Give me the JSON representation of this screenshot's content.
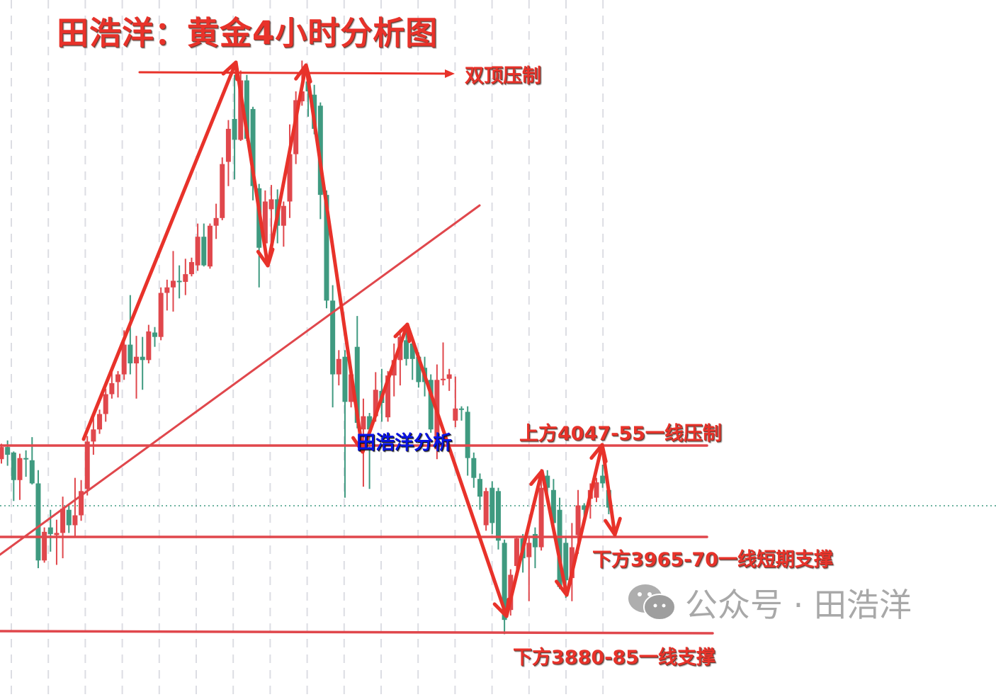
{
  "title": "田浩洋：黄金4小时分析图",
  "annotations": {
    "double_top": "双顶压制",
    "author_mark": "田浩洋分析",
    "resistance": "上方4047-55一线压制",
    "short_support": "下方3965-70一线短期支撑",
    "support": "下方3880-85一线支撑"
  },
  "watermark": {
    "icon": "wechat-icon",
    "text": "公众号 · 田浩洋"
  },
  "colors": {
    "up": "#e0474c",
    "down": "#3f9a80",
    "annotation": "#e8322a",
    "author_mark": "#0a14e6",
    "grid": "#dcdde3",
    "current_price_line": "#3f9a80"
  },
  "chart_data": {
    "type": "candlestick",
    "title": "田浩洋：黄金4小时分析图",
    "xlabel": "",
    "ylabel": "",
    "ylim": [
      3822,
      4455
    ],
    "grid": "vertical dashed",
    "levels": [
      {
        "label": "上方4047-55一线压制",
        "price": 4051
      },
      {
        "label": "下方3965-70一线短期支撑",
        "price": 3968
      },
      {
        "label": "下方3880-85一线支撑",
        "price": 3882
      }
    ],
    "current_price": 3996,
    "candles": [
      [
        4038,
        4052,
        4034,
        4049
      ],
      [
        4049,
        4055,
        4032,
        4042
      ],
      [
        4044,
        4045,
        4000,
        4019
      ],
      [
        4019,
        4043,
        4001,
        4039
      ],
      [
        4039,
        4046,
        4022,
        4038
      ],
      [
        4037,
        4058,
        4015,
        4016
      ],
      [
        4016,
        4028,
        3939,
        3946
      ],
      [
        3946,
        3976,
        3944,
        3972
      ],
      [
        3976,
        3992,
        3954,
        3970
      ],
      [
        3969,
        3983,
        3942,
        3971
      ],
      [
        3971,
        4004,
        3948,
        3993
      ],
      [
        3992,
        3997,
        3971,
        3978
      ],
      [
        3978,
        4021,
        3967,
        3987
      ],
      [
        3987,
        4019,
        3982,
        4009
      ],
      [
        4011,
        4059,
        4005,
        4054
      ],
      [
        4054,
        4080,
        4042,
        4065
      ],
      [
        4065,
        4083,
        4061,
        4079
      ],
      [
        4079,
        4102,
        4072,
        4097
      ],
      [
        4097,
        4120,
        4093,
        4107
      ],
      [
        4108,
        4118,
        4094,
        4115
      ],
      [
        4115,
        4155,
        4110,
        4142
      ],
      [
        4142,
        4187,
        4115,
        4125
      ],
      [
        4125,
        4150,
        4093,
        4131
      ],
      [
        4131,
        4149,
        4101,
        4128
      ],
      [
        4128,
        4160,
        4125,
        4154
      ],
      [
        4153,
        4158,
        4140,
        4149
      ],
      [
        4149,
        4194,
        4146,
        4189
      ],
      [
        4189,
        4201,
        4173,
        4194
      ],
      [
        4194,
        4227,
        4172,
        4200
      ],
      [
        4200,
        4214,
        4184,
        4199
      ],
      [
        4199,
        4220,
        4187,
        4206
      ],
      [
        4206,
        4221,
        4204,
        4217
      ],
      [
        4214,
        4252,
        4209,
        4240
      ],
      [
        4240,
        4252,
        4213,
        4214
      ],
      [
        4213,
        4252,
        4211,
        4250
      ],
      [
        4250,
        4270,
        4238,
        4257
      ],
      [
        4257,
        4312,
        4255,
        4306
      ],
      [
        4308,
        4346,
        4286,
        4338
      ],
      [
        4347,
        4387,
        4292,
        4328
      ],
      [
        4328,
        4391,
        4327,
        4382
      ],
      [
        4382,
        4387,
        4327,
        4329
      ],
      [
        4356,
        4358,
        4273,
        4286
      ],
      [
        4284,
        4288,
        4194,
        4230
      ],
      [
        4234,
        4282,
        4229,
        4272
      ],
      [
        4265,
        4287,
        4223,
        4274
      ],
      [
        4274,
        4283,
        4234,
        4250
      ],
      [
        4250,
        4272,
        4231,
        4268
      ],
      [
        4272,
        4342,
        4257,
        4315
      ],
      [
        4315,
        4372,
        4306,
        4364
      ],
      [
        4363,
        4400,
        4359,
        4372
      ],
      [
        4381,
        4391,
        4349,
        4372
      ],
      [
        4369,
        4378,
        4333,
        4338
      ],
      [
        4359,
        4362,
        4256,
        4278
      ],
      [
        4278,
        4282,
        4175,
        4182
      ],
      [
        4182,
        4196,
        4085,
        4115
      ],
      [
        4115,
        4137,
        4105,
        4129
      ],
      [
        4131,
        4137,
        4003,
        4090
      ],
      [
        4090,
        4121,
        4085,
        4115
      ],
      [
        4140,
        4168,
        4066,
        4071
      ],
      [
        4065,
        4093,
        4013,
        4077
      ],
      [
        4077,
        4080,
        4011,
        4065
      ],
      [
        4077,
        4117,
        4072,
        4101
      ],
      [
        4100,
        4120,
        4072,
        4089
      ],
      [
        4076,
        4118,
        4072,
        4114
      ],
      [
        4114,
        4143,
        4095,
        4128
      ],
      [
        4128,
        4156,
        4105,
        4149
      ],
      [
        4146,
        4155,
        4123,
        4129
      ],
      [
        4143,
        4147,
        4110,
        4129
      ],
      [
        4131,
        4135,
        4103,
        4108
      ],
      [
        4121,
        4131,
        4095,
        4108
      ],
      [
        4110,
        4115,
        4062,
        4065
      ],
      [
        4047,
        4124,
        4038,
        4110
      ],
      [
        4110,
        4144,
        4105,
        4111
      ],
      [
        4111,
        4120,
        4100,
        4115
      ],
      [
        4073,
        4113,
        4067,
        4084
      ],
      [
        4084,
        4086,
        4073,
        4083
      ],
      [
        4081,
        4086,
        4023,
        4039
      ],
      [
        4039,
        4044,
        4012,
        4021
      ],
      [
        4020,
        4025,
        3992,
        4004
      ],
      [
        3978,
        4012,
        3973,
        4009
      ],
      [
        4012,
        4018,
        3970,
        3980
      ],
      [
        4009,
        4012,
        3956,
        3964
      ],
      [
        3962,
        3965,
        3879,
        3892
      ],
      [
        3901,
        3938,
        3896,
        3933
      ],
      [
        3941,
        3967,
        3930,
        3966
      ],
      [
        3966,
        3970,
        3935,
        3948
      ],
      [
        3949,
        3967,
        3909,
        3962
      ],
      [
        3970,
        3976,
        3939,
        3958
      ],
      [
        3958,
        4029,
        3955,
        4012
      ],
      [
        4023,
        4028,
        4005,
        4012
      ],
      [
        4010,
        4020,
        3976,
        3980
      ],
      [
        3992,
        4003,
        3920,
        3922
      ],
      [
        3962,
        3967,
        3912,
        3928
      ],
      [
        3930,
        3980,
        3909,
        3958
      ],
      [
        3969,
        4010,
        3952,
        3996
      ],
      [
        3996,
        3998,
        3984,
        3992
      ],
      [
        4002,
        4016,
        3984,
        4010
      ],
      [
        4003,
        4021,
        3999,
        4017
      ],
      [
        4023,
        4033,
        4012,
        4016
      ],
      [
        4010,
        4012,
        3988,
        3994
      ]
    ]
  }
}
